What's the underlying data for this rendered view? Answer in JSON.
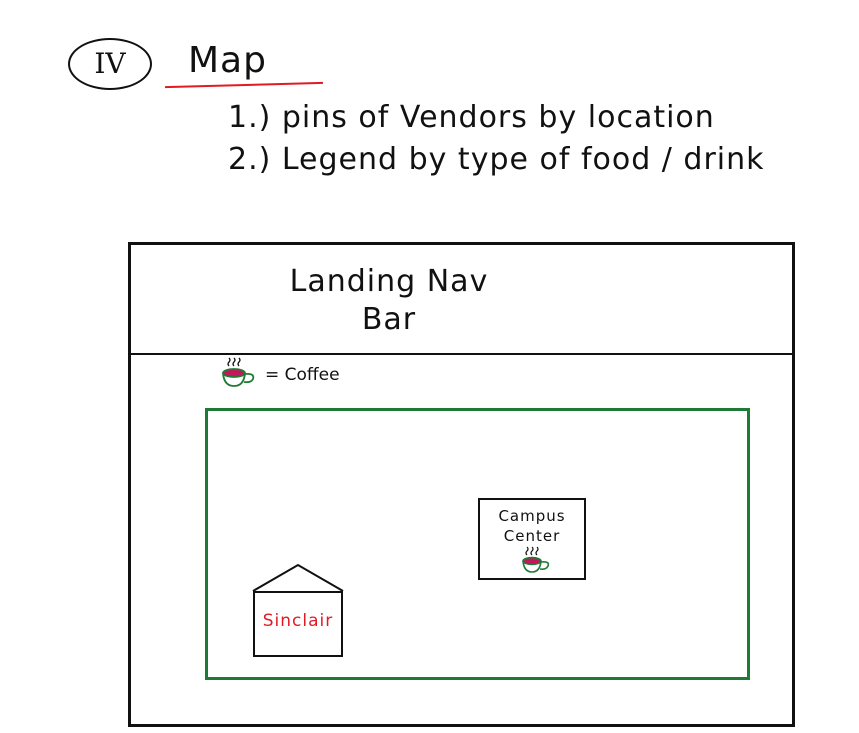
{
  "header": {
    "section_numeral": "IV",
    "title": "Map",
    "notes": [
      "1.) pins of Vendors by location",
      "2.) Legend by type of food / drink"
    ]
  },
  "wireframe": {
    "nav_bar_label": "Landing Nav\nBar",
    "legend": {
      "icon": "coffee-cup-icon",
      "label": "= Coffee"
    },
    "map": {
      "buildings": [
        {
          "label": "Campus\nCenter",
          "pin_icon": "coffee-cup-icon"
        },
        {
          "label": "Sinclair"
        }
      ]
    }
  },
  "colors": {
    "underline": "#e01b24",
    "map_border": "#1f7a35",
    "cup": "#1f7a35",
    "cup_fill": "#c2185b",
    "sinclair_text": "#e01b24"
  }
}
